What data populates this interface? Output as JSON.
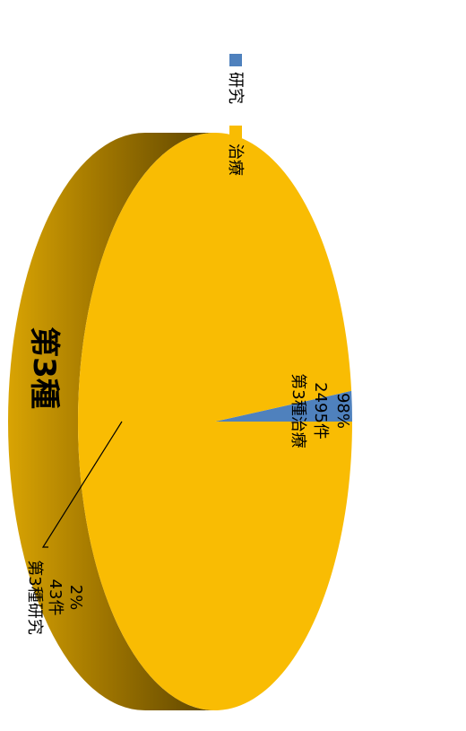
{
  "chart_data": {
    "type": "pie",
    "title": "第3種",
    "categories": [
      "研究",
      "治療"
    ],
    "values": [
      43,
      2495
    ],
    "series": [
      {
        "name": "研究",
        "color": "#4f81bd"
      },
      {
        "name": "治療",
        "color": "#f9bc03"
      }
    ],
    "data_labels": [
      {
        "name": "第3種研究",
        "count": "43件",
        "percent": "2%"
      },
      {
        "name": "第3種治療",
        "count": "2495件",
        "percent": "98%"
      }
    ],
    "legend": {
      "placement": "top-right",
      "items": [
        "研究",
        "治療"
      ]
    },
    "orientation": "rotated-90-cw",
    "style": "3d"
  }
}
